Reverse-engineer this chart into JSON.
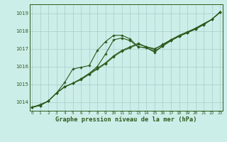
{
  "xlabel": "Graphe pression niveau de la mer (hPa)",
  "background_color": "#cceee8",
  "plot_bg_color": "#cceee8",
  "grid_color": "#aacccc",
  "line_color": "#2d5a1e",
  "x_ticks": [
    0,
    1,
    2,
    3,
    4,
    5,
    6,
    7,
    8,
    9,
    10,
    11,
    12,
    13,
    14,
    15,
    16,
    17,
    18,
    19,
    20,
    21,
    22,
    23
  ],
  "ylim": [
    1013.5,
    1019.5
  ],
  "xlim": [
    -0.3,
    23.3
  ],
  "yticks": [
    1014,
    1015,
    1016,
    1017,
    1018,
    1019
  ],
  "line1": [
    1013.7,
    1013.8,
    1014.05,
    1014.5,
    1014.85,
    1015.05,
    1015.3,
    1015.6,
    1015.9,
    1016.2,
    1016.6,
    1016.9,
    1017.1,
    1017.3,
    1017.1,
    1017.0,
    1017.2,
    1017.5,
    1017.7,
    1017.9,
    1018.1,
    1018.35,
    1018.65,
    1019.05
  ],
  "line2": [
    1013.7,
    1013.8,
    1014.05,
    1014.5,
    1015.1,
    1015.85,
    1015.95,
    1016.05,
    1016.9,
    1017.4,
    1017.75,
    1017.75,
    1017.55,
    1017.1,
    1017.05,
    1016.8,
    1017.15,
    1017.45,
    1017.7,
    1017.9,
    1018.1,
    1018.35,
    1018.65,
    1019.05
  ],
  "line3": [
    1013.7,
    1013.8,
    1014.05,
    1014.5,
    1014.85,
    1015.05,
    1015.3,
    1015.6,
    1016.0,
    1016.7,
    1017.5,
    1017.6,
    1017.45,
    1017.1,
    1017.05,
    1016.85,
    1017.15,
    1017.45,
    1017.7,
    1017.9,
    1018.15,
    1018.4,
    1018.65,
    1019.05
  ],
  "line4": [
    1013.7,
    1013.85,
    1014.05,
    1014.5,
    1014.85,
    1015.05,
    1015.25,
    1015.55,
    1015.85,
    1016.15,
    1016.55,
    1016.85,
    1017.05,
    1017.25,
    1017.1,
    1016.95,
    1017.25,
    1017.5,
    1017.75,
    1017.95,
    1018.15,
    1018.4,
    1018.65,
    1019.05
  ]
}
